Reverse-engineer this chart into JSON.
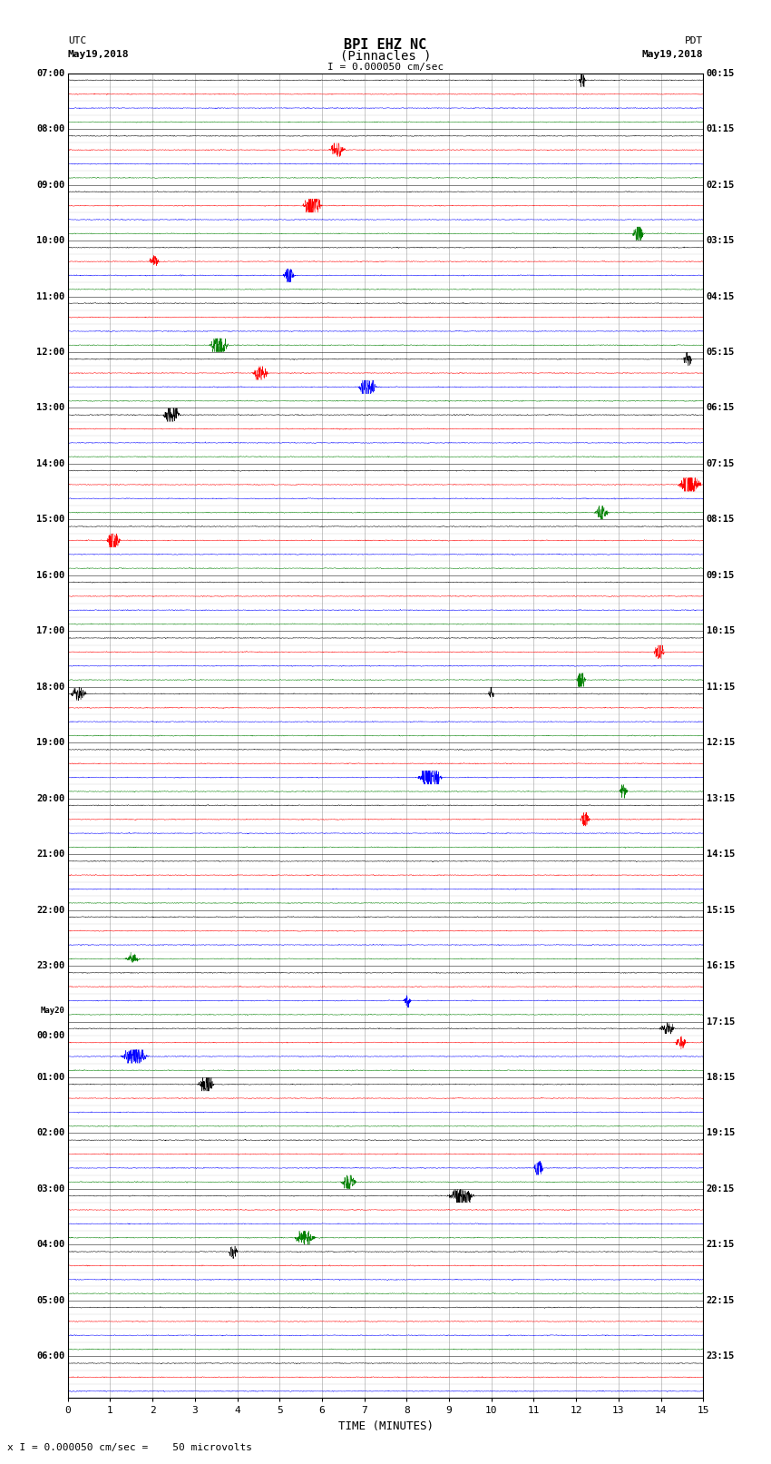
{
  "title_line1": "BPI EHZ NC",
  "title_line2": "(Pinnacles )",
  "scale_text": "I = 0.000050 cm/sec",
  "left_label_line1": "UTC",
  "left_label_line2": "May19,2018",
  "right_label_line1": "PDT",
  "right_label_line2": "May19,2018",
  "footer_label": "x I = 0.000050 cm/sec =    50 microvolts",
  "xlabel": "TIME (MINUTES)",
  "left_times": [
    "07:00",
    "",
    "",
    "",
    "08:00",
    "",
    "",
    "",
    "09:00",
    "",
    "",
    "",
    "10:00",
    "",
    "",
    "",
    "11:00",
    "",
    "",
    "",
    "12:00",
    "",
    "",
    "",
    "13:00",
    "",
    "",
    "",
    "14:00",
    "",
    "",
    "",
    "15:00",
    "",
    "",
    "",
    "16:00",
    "",
    "",
    "",
    "17:00",
    "",
    "",
    "",
    "18:00",
    "",
    "",
    "",
    "19:00",
    "",
    "",
    "",
    "20:00",
    "",
    "",
    "",
    "21:00",
    "",
    "",
    "",
    "22:00",
    "",
    "",
    "",
    "23:00",
    "",
    "",
    "",
    "May20",
    "00:00",
    "",
    "",
    "01:00",
    "",
    "",
    "",
    "02:00",
    "",
    "",
    "",
    "03:00",
    "",
    "",
    "",
    "04:00",
    "",
    "",
    "",
    "05:00",
    "",
    "",
    "",
    "06:00",
    "",
    ""
  ],
  "right_times": [
    "00:15",
    "",
    "",
    "",
    "01:15",
    "",
    "",
    "",
    "02:15",
    "",
    "",
    "",
    "03:15",
    "",
    "",
    "",
    "04:15",
    "",
    "",
    "",
    "05:15",
    "",
    "",
    "",
    "06:15",
    "",
    "",
    "",
    "07:15",
    "",
    "",
    "",
    "08:15",
    "",
    "",
    "",
    "09:15",
    "",
    "",
    "",
    "10:15",
    "",
    "",
    "",
    "11:15",
    "",
    "",
    "",
    "12:15",
    "",
    "",
    "",
    "13:15",
    "",
    "",
    "",
    "14:15",
    "",
    "",
    "",
    "15:15",
    "",
    "",
    "",
    "16:15",
    "",
    "",
    "",
    "17:15",
    "",
    "",
    "",
    "18:15",
    "",
    "",
    "",
    "19:15",
    "",
    "",
    "",
    "20:15",
    "",
    "",
    "",
    "21:15",
    "",
    "",
    "",
    "22:15",
    "",
    "",
    "",
    "23:15",
    "",
    ""
  ],
  "num_rows": 95,
  "bg_color": "#ffffff",
  "trace_colors": [
    "#000000",
    "#ff0000",
    "#0000ff",
    "#008000"
  ],
  "grid_color": "#808080",
  "x_min": 0,
  "x_max": 15,
  "x_ticks": [
    0,
    1,
    2,
    3,
    4,
    5,
    6,
    7,
    8,
    9,
    10,
    11,
    12,
    13,
    14,
    15
  ],
  "noise_scale": 0.025,
  "signal_probability": 0.18,
  "signal_scale": 0.38
}
